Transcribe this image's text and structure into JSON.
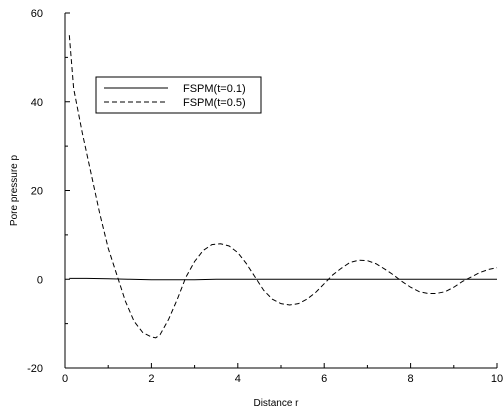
{
  "chart_data": {
    "type": "line",
    "title": "",
    "xlabel": "Distance r",
    "ylabel": "Pore pressure p",
    "xlim": [
      0,
      10
    ],
    "ylim": [
      -20,
      60
    ],
    "x_ticks": [
      0,
      2,
      4,
      6,
      8,
      10
    ],
    "y_ticks": [
      -20,
      0,
      20,
      40,
      60
    ],
    "grid": false,
    "legend_position": "top-center",
    "series": [
      {
        "name": "FSPM(t=0.1)",
        "style": "solid",
        "color": "#000000",
        "x": [
          0.1,
          0.5,
          1,
          1.5,
          2,
          2.5,
          3,
          3.5,
          4,
          4.5,
          5,
          5.5,
          6,
          6.5,
          7,
          7.5,
          8,
          8.5,
          9,
          9.5,
          10
        ],
        "y": [
          0.2,
          0.2,
          0.1,
          0,
          -0.1,
          -0.1,
          -0.1,
          0,
          0,
          0,
          0,
          0,
          0,
          0,
          0,
          0,
          0,
          0,
          0,
          0,
          0
        ]
      },
      {
        "name": "FSPM(t=0.5)",
        "style": "dashed",
        "color": "#000000",
        "x": [
          0.1,
          0.2,
          0.4,
          0.6,
          0.8,
          1.0,
          1.2,
          1.4,
          1.6,
          1.8,
          2.0,
          2.1,
          2.2,
          2.4,
          2.6,
          2.8,
          3.0,
          3.2,
          3.4,
          3.6,
          3.8,
          4.0,
          4.2,
          4.4,
          4.6,
          4.8,
          5.0,
          5.2,
          5.4,
          5.6,
          5.8,
          6.0,
          6.2,
          6.4,
          6.6,
          6.8,
          7.0,
          7.2,
          7.4,
          7.6,
          7.8,
          8.0,
          8.2,
          8.4,
          8.6,
          8.8,
          9.0,
          9.2,
          9.4,
          9.6,
          9.8,
          10.0
        ],
        "y": [
          55,
          43,
          33,
          24,
          15,
          7,
          1,
          -5,
          -9.5,
          -12,
          -13,
          -13.2,
          -12.5,
          -9,
          -4.5,
          0.5,
          4,
          6.5,
          7.8,
          8,
          7.5,
          6,
          3.5,
          0.5,
          -2.5,
          -4.5,
          -5.5,
          -5.8,
          -5.5,
          -4.5,
          -3,
          -1,
          1,
          2.5,
          3.8,
          4.3,
          4.2,
          3.5,
          2.3,
          1,
          -0.5,
          -1.8,
          -2.8,
          -3.2,
          -3.2,
          -2.8,
          -1.8,
          -0.5,
          0.5,
          1.5,
          2.2,
          2.6
        ]
      }
    ]
  }
}
